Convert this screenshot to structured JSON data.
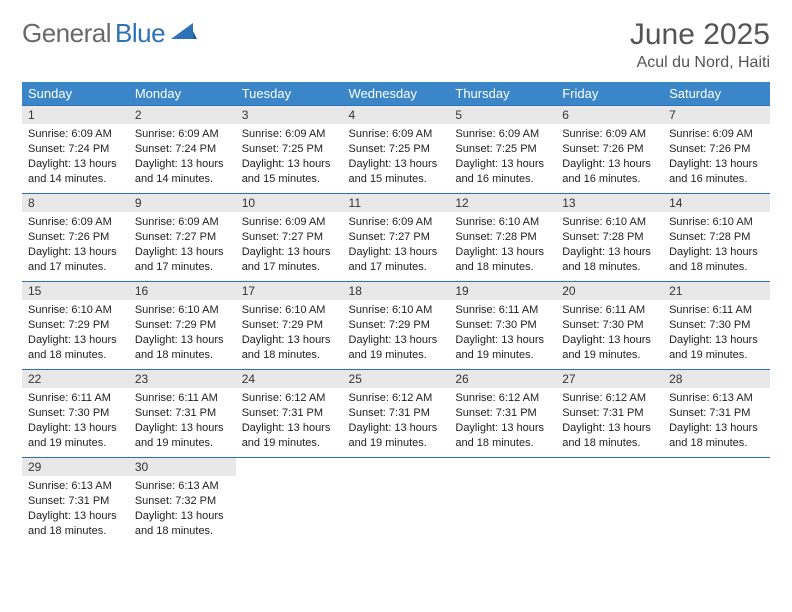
{
  "brand": {
    "main": "General",
    "sub": "Blue"
  },
  "header": {
    "title": "June 2025",
    "location": "Acul du Nord, Haiti"
  },
  "colors": {
    "header_bg": "#3a86c8",
    "header_text": "#ffffff",
    "daynum_bg": "#e8e8e8",
    "rule": "#2d72b5",
    "brand_gray": "#6a6a6a",
    "brand_blue": "#2d72b5"
  },
  "weekdays": [
    "Sunday",
    "Monday",
    "Tuesday",
    "Wednesday",
    "Thursday",
    "Friday",
    "Saturday"
  ],
  "weeks": [
    [
      {
        "n": "1",
        "sr": "6:09 AM",
        "ss": "7:24 PM",
        "dl": "13 hours and 14 minutes."
      },
      {
        "n": "2",
        "sr": "6:09 AM",
        "ss": "7:24 PM",
        "dl": "13 hours and 14 minutes."
      },
      {
        "n": "3",
        "sr": "6:09 AM",
        "ss": "7:25 PM",
        "dl": "13 hours and 15 minutes."
      },
      {
        "n": "4",
        "sr": "6:09 AM",
        "ss": "7:25 PM",
        "dl": "13 hours and 15 minutes."
      },
      {
        "n": "5",
        "sr": "6:09 AM",
        "ss": "7:25 PM",
        "dl": "13 hours and 16 minutes."
      },
      {
        "n": "6",
        "sr": "6:09 AM",
        "ss": "7:26 PM",
        "dl": "13 hours and 16 minutes."
      },
      {
        "n": "7",
        "sr": "6:09 AM",
        "ss": "7:26 PM",
        "dl": "13 hours and 16 minutes."
      }
    ],
    [
      {
        "n": "8",
        "sr": "6:09 AM",
        "ss": "7:26 PM",
        "dl": "13 hours and 17 minutes."
      },
      {
        "n": "9",
        "sr": "6:09 AM",
        "ss": "7:27 PM",
        "dl": "13 hours and 17 minutes."
      },
      {
        "n": "10",
        "sr": "6:09 AM",
        "ss": "7:27 PM",
        "dl": "13 hours and 17 minutes."
      },
      {
        "n": "11",
        "sr": "6:09 AM",
        "ss": "7:27 PM",
        "dl": "13 hours and 17 minutes."
      },
      {
        "n": "12",
        "sr": "6:10 AM",
        "ss": "7:28 PM",
        "dl": "13 hours and 18 minutes."
      },
      {
        "n": "13",
        "sr": "6:10 AM",
        "ss": "7:28 PM",
        "dl": "13 hours and 18 minutes."
      },
      {
        "n": "14",
        "sr": "6:10 AM",
        "ss": "7:28 PM",
        "dl": "13 hours and 18 minutes."
      }
    ],
    [
      {
        "n": "15",
        "sr": "6:10 AM",
        "ss": "7:29 PM",
        "dl": "13 hours and 18 minutes."
      },
      {
        "n": "16",
        "sr": "6:10 AM",
        "ss": "7:29 PM",
        "dl": "13 hours and 18 minutes."
      },
      {
        "n": "17",
        "sr": "6:10 AM",
        "ss": "7:29 PM",
        "dl": "13 hours and 18 minutes."
      },
      {
        "n": "18",
        "sr": "6:10 AM",
        "ss": "7:29 PM",
        "dl": "13 hours and 19 minutes."
      },
      {
        "n": "19",
        "sr": "6:11 AM",
        "ss": "7:30 PM",
        "dl": "13 hours and 19 minutes."
      },
      {
        "n": "20",
        "sr": "6:11 AM",
        "ss": "7:30 PM",
        "dl": "13 hours and 19 minutes."
      },
      {
        "n": "21",
        "sr": "6:11 AM",
        "ss": "7:30 PM",
        "dl": "13 hours and 19 minutes."
      }
    ],
    [
      {
        "n": "22",
        "sr": "6:11 AM",
        "ss": "7:30 PM",
        "dl": "13 hours and 19 minutes."
      },
      {
        "n": "23",
        "sr": "6:11 AM",
        "ss": "7:31 PM",
        "dl": "13 hours and 19 minutes."
      },
      {
        "n": "24",
        "sr": "6:12 AM",
        "ss": "7:31 PM",
        "dl": "13 hours and 19 minutes."
      },
      {
        "n": "25",
        "sr": "6:12 AM",
        "ss": "7:31 PM",
        "dl": "13 hours and 19 minutes."
      },
      {
        "n": "26",
        "sr": "6:12 AM",
        "ss": "7:31 PM",
        "dl": "13 hours and 18 minutes."
      },
      {
        "n": "27",
        "sr": "6:12 AM",
        "ss": "7:31 PM",
        "dl": "13 hours and 18 minutes."
      },
      {
        "n": "28",
        "sr": "6:13 AM",
        "ss": "7:31 PM",
        "dl": "13 hours and 18 minutes."
      }
    ],
    [
      {
        "n": "29",
        "sr": "6:13 AM",
        "ss": "7:31 PM",
        "dl": "13 hours and 18 minutes."
      },
      {
        "n": "30",
        "sr": "6:13 AM",
        "ss": "7:32 PM",
        "dl": "13 hours and 18 minutes."
      },
      null,
      null,
      null,
      null,
      null
    ]
  ],
  "labels": {
    "sunrise": "Sunrise: ",
    "sunset": "Sunset: ",
    "daylight": "Daylight: "
  }
}
